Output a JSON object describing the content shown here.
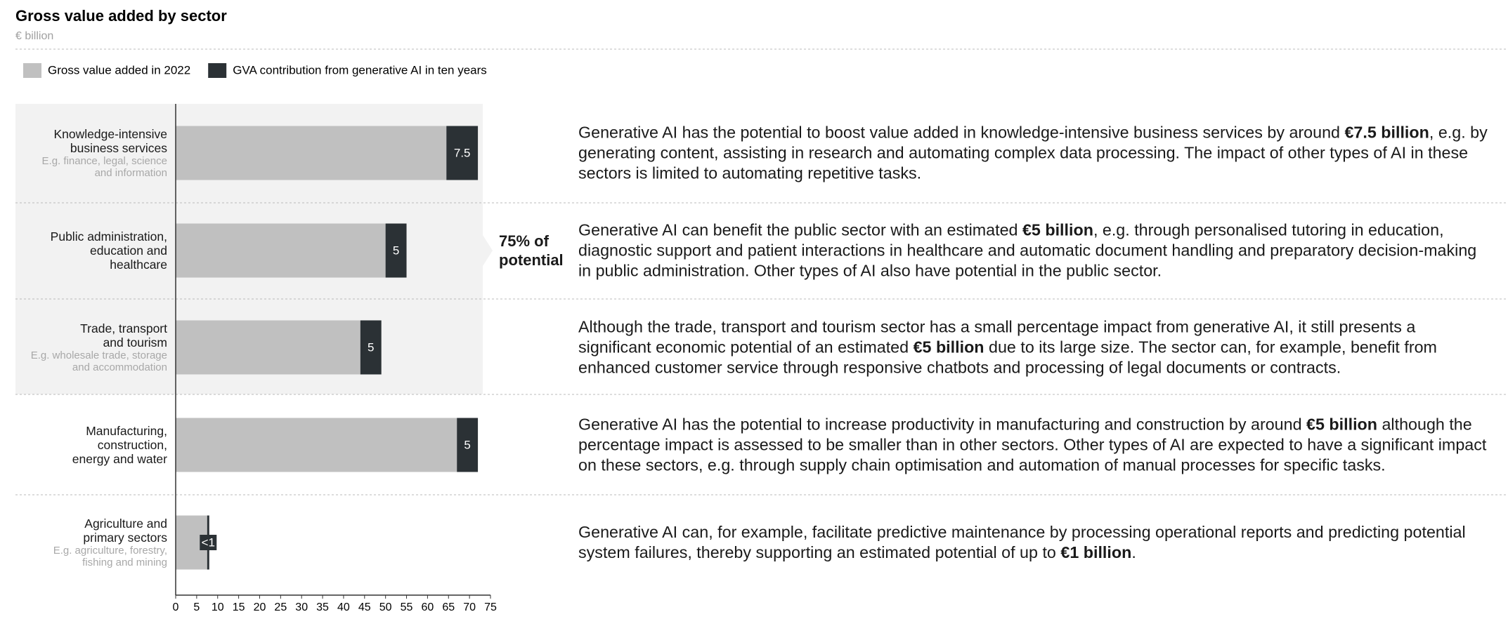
{
  "chart_data": {
    "type": "bar",
    "orientation": "horizontal",
    "stacked": true,
    "title": "Gross value added by sector",
    "subtitle": "€ billion",
    "categories": [
      "Knowledge-intensive\nbusiness services",
      "Public administration,\neducation and\nhealthcare",
      "Trade, transport\nand tourism",
      "Manufacturing,\nconstruction,\nenergy and water",
      "Agriculture and\nprimary sectors"
    ],
    "category_notes": [
      "E.g. finance, legal, science\nand information",
      null,
      "E.g. wholesale trade, storage\nand accommodation",
      null,
      "E.g. agriculture, forestry,\nfishing and mining"
    ],
    "series": [
      {
        "name": "Gross value added in 2022",
        "color": "#c0c0c0",
        "values": [
          64.5,
          50,
          44,
          67,
          7.5
        ]
      },
      {
        "name": "GVA contribution from generative AI in ten years",
        "color": "#2b3135",
        "values": [
          7.5,
          5,
          5,
          5,
          0.5
        ],
        "value_labels": [
          "7.5",
          "5",
          "5",
          "5",
          "<1"
        ]
      }
    ],
    "xlim": [
      0,
      75
    ],
    "xticks": [
      0,
      5,
      10,
      15,
      20,
      25,
      30,
      35,
      40,
      45,
      50,
      55,
      60,
      65,
      70,
      75
    ],
    "annotation": "75% of\npotential",
    "descriptions": [
      [
        "Generative AI has the potential to boost value added in knowledge-intensive business services by around ",
        "€7.5 billion",
        ", e.g. by generating content, assisting in research and automating complex data processing. The impact of other types of AI in these sectors is limited to automating repetitive tasks."
      ],
      [
        "Generative AI can benefit the public sector with an estimated ",
        "€5 billion",
        ", e.g. through personalised tutoring in education, diagnostic support and patient interactions in healthcare and automatic document handling and preparatory decision-making in public administration. Other types of AI also have potential in the public sector."
      ],
      [
        "Although the trade, transport and tourism sector has a small percentage impact from generative AI, it still presents a significant economic potential of an estimated ",
        "€5 billion",
        " due to its large size. The sector can, for example, benefit from enhanced customer service through responsive chatbots and processing of legal documents or contracts."
      ],
      [
        "Generative AI has the potential to increase productivity in manufacturing and construction by around ",
        "€5 billion",
        " although the percentage impact is assessed to be smaller than in other sectors. Other types of AI are expected to have a significant impact on these sectors, e.g. through supply chain optimisation and automation of manual processes for specific tasks."
      ],
      [
        "Generative AI can, for example, facilitate predictive maintenance by processing operational reports and predicting potential system failures, thereby supporting an estimated potential of up to ",
        "€1 billion",
        "."
      ]
    ]
  }
}
